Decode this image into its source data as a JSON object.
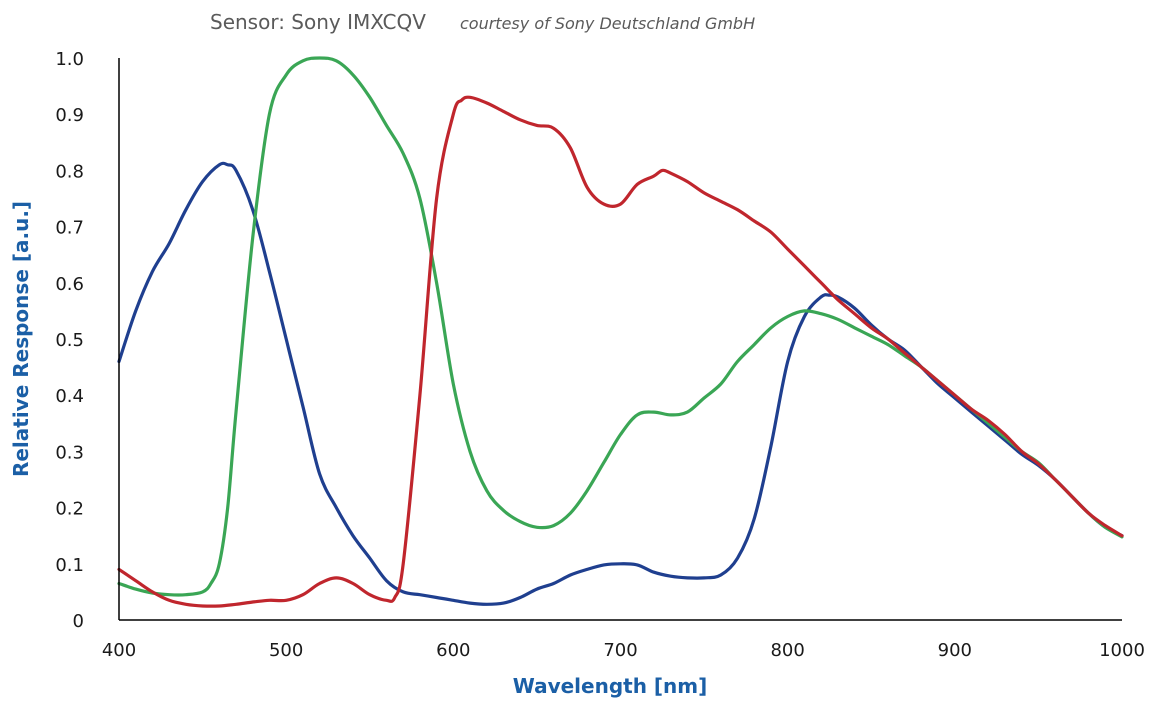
{
  "chart_data": {
    "type": "line",
    "title": "Sensor: Sony IMXCQV",
    "subtitle": "courtesy of Sony Deutschland GmbH",
    "xlabel": "Wavelength [nm]",
    "ylabel": "Relative Response [a.u.]",
    "xlim": [
      400,
      1000
    ],
    "ylim": [
      0,
      1.0
    ],
    "x_ticks": [
      "400",
      "500",
      "600",
      "700",
      "800",
      "900",
      "1000"
    ],
    "y_ticks": [
      "0",
      "0.1",
      "0.2",
      "0.3",
      "0.4",
      "0.5",
      "0.6",
      "0.7",
      "0.8",
      "0.9",
      "1.0"
    ],
    "x_tick_values": [
      400,
      500,
      600,
      700,
      800,
      900,
      1000
    ],
    "y_tick_values": [
      0,
      0.1,
      0.2,
      0.3,
      0.4,
      0.5,
      0.6,
      0.7,
      0.8,
      0.9,
      1.0
    ],
    "grid": false,
    "legend": "none",
    "axis_label_color": "#1b5fa6",
    "series": [
      {
        "color": "#1f3f8f",
        "x": [
          400,
          410,
          420,
          430,
          440,
          450,
          460,
          465,
          470,
          480,
          490,
          500,
          510,
          520,
          530,
          540,
          550,
          560,
          570,
          580,
          590,
          600,
          610,
          620,
          630,
          640,
          650,
          660,
          670,
          680,
          690,
          700,
          710,
          720,
          730,
          740,
          750,
          760,
          770,
          780,
          790,
          800,
          810,
          820,
          825,
          830,
          840,
          850,
          860,
          870,
          880,
          890,
          900,
          910,
          920,
          930,
          940,
          950,
          960,
          970,
          980,
          990,
          1000
        ],
        "y": [
          0.46,
          0.55,
          0.62,
          0.67,
          0.73,
          0.78,
          0.81,
          0.81,
          0.8,
          0.73,
          0.62,
          0.5,
          0.38,
          0.26,
          0.2,
          0.15,
          0.11,
          0.07,
          0.05,
          0.045,
          0.04,
          0.035,
          0.03,
          0.028,
          0.03,
          0.04,
          0.055,
          0.065,
          0.08,
          0.09,
          0.098,
          0.1,
          0.098,
          0.085,
          0.078,
          0.075,
          0.075,
          0.08,
          0.11,
          0.18,
          0.31,
          0.46,
          0.54,
          0.575,
          0.578,
          0.575,
          0.555,
          0.525,
          0.5,
          0.48,
          0.45,
          0.42,
          0.395,
          0.37,
          0.345,
          0.32,
          0.295,
          0.275,
          0.25,
          0.22,
          0.19,
          0.165,
          0.15
        ]
      },
      {
        "color": "#3aa655",
        "x": [
          400,
          410,
          420,
          430,
          440,
          450,
          455,
          460,
          465,
          470,
          480,
          490,
          500,
          510,
          520,
          530,
          540,
          550,
          560,
          570,
          580,
          590,
          600,
          610,
          620,
          630,
          640,
          650,
          660,
          670,
          680,
          690,
          700,
          710,
          720,
          730,
          740,
          750,
          760,
          770,
          780,
          790,
          800,
          810,
          820,
          830,
          840,
          850,
          860,
          870,
          880,
          890,
          900,
          910,
          920,
          930,
          940,
          950,
          960,
          970,
          980,
          990,
          1000
        ],
        "y": [
          0.065,
          0.055,
          0.048,
          0.045,
          0.045,
          0.05,
          0.065,
          0.1,
          0.2,
          0.37,
          0.68,
          0.9,
          0.97,
          0.995,
          1.0,
          0.995,
          0.97,
          0.93,
          0.88,
          0.83,
          0.75,
          0.6,
          0.42,
          0.3,
          0.23,
          0.195,
          0.175,
          0.165,
          0.168,
          0.19,
          0.23,
          0.28,
          0.33,
          0.365,
          0.37,
          0.365,
          0.37,
          0.395,
          0.42,
          0.46,
          0.49,
          0.52,
          0.54,
          0.55,
          0.545,
          0.535,
          0.52,
          0.505,
          0.49,
          0.47,
          0.45,
          0.425,
          0.4,
          0.375,
          0.35,
          0.325,
          0.3,
          0.28,
          0.25,
          0.22,
          0.19,
          0.165,
          0.148
        ]
      },
      {
        "color": "#c0262d",
        "x": [
          400,
          410,
          420,
          430,
          440,
          450,
          460,
          470,
          480,
          490,
          500,
          510,
          520,
          530,
          540,
          550,
          560,
          565,
          570,
          580,
          590,
          600,
          605,
          610,
          620,
          630,
          640,
          650,
          660,
          670,
          680,
          690,
          700,
          710,
          720,
          725,
          730,
          740,
          750,
          760,
          770,
          780,
          790,
          800,
          810,
          820,
          830,
          840,
          850,
          860,
          870,
          880,
          890,
          900,
          910,
          920,
          930,
          940,
          950,
          960,
          970,
          980,
          990,
          1000
        ],
        "y": [
          0.09,
          0.07,
          0.05,
          0.035,
          0.028,
          0.025,
          0.025,
          0.028,
          0.032,
          0.035,
          0.035,
          0.045,
          0.065,
          0.075,
          0.065,
          0.045,
          0.035,
          0.04,
          0.1,
          0.4,
          0.75,
          0.9,
          0.925,
          0.93,
          0.92,
          0.905,
          0.89,
          0.88,
          0.875,
          0.84,
          0.77,
          0.74,
          0.74,
          0.775,
          0.79,
          0.8,
          0.795,
          0.78,
          0.76,
          0.745,
          0.73,
          0.71,
          0.69,
          0.66,
          0.63,
          0.6,
          0.57,
          0.545,
          0.52,
          0.5,
          0.475,
          0.45,
          0.425,
          0.4,
          0.375,
          0.355,
          0.33,
          0.3,
          0.278,
          0.25,
          0.22,
          0.19,
          0.168,
          0.15
        ]
      }
    ]
  }
}
